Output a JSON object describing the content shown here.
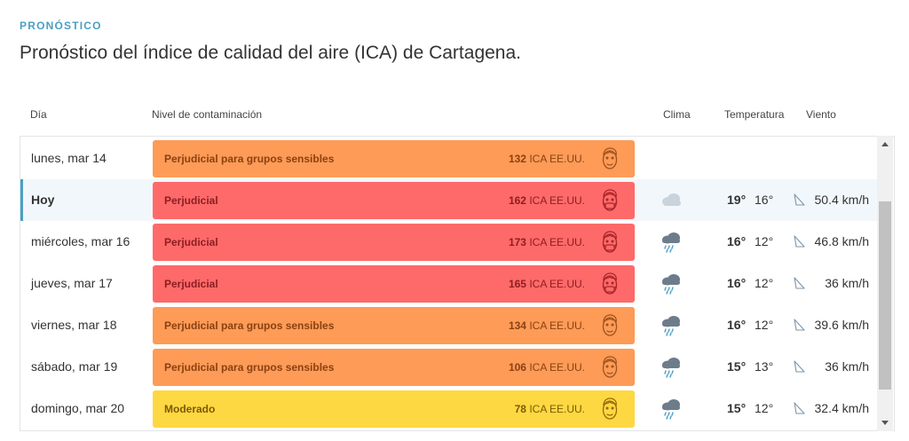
{
  "section": "PRONÓSTICO",
  "title": "Pronóstico del índice de calidad del aire (ICA) de Cartagena.",
  "columns": {
    "day": "Día",
    "level": "Nivel de contaminación",
    "weather": "Clima",
    "temperature": "Temperatura",
    "wind": "Viento"
  },
  "rows": [
    {
      "day": "lunes, mar 14",
      "level": "Perjudicial para grupos sensibles",
      "aqi": "132",
      "unit": "ICA EE.UU.",
      "color": "#fd9b57",
      "weather_icon": "",
      "tmax": "",
      "tmin": "",
      "wind": ""
    },
    {
      "day": "Hoy",
      "level": "Perjudicial",
      "aqi": "162",
      "unit": "ICA EE.UU.",
      "color": "#fe6a69",
      "weather_icon": "cloud-icon",
      "tmax": "19°",
      "tmin": "16°",
      "wind": "50.4 km/h"
    },
    {
      "day": "miércoles, mar 16",
      "level": "Perjudicial",
      "aqi": "173",
      "unit": "ICA EE.UU.",
      "color": "#fe6a69",
      "weather_icon": "rain-cloud-icon",
      "tmax": "16°",
      "tmin": "12°",
      "wind": "46.8 km/h"
    },
    {
      "day": "jueves, mar 17",
      "level": "Perjudicial",
      "aqi": "165",
      "unit": "ICA EE.UU.",
      "color": "#fe6a69",
      "weather_icon": "rain-cloud-icon",
      "tmax": "16°",
      "tmin": "12°",
      "wind": "36 km/h"
    },
    {
      "day": "viernes, mar 18",
      "level": "Perjudicial para grupos sensibles",
      "aqi": "134",
      "unit": "ICA EE.UU.",
      "color": "#fd9b57",
      "weather_icon": "rain-cloud-icon",
      "tmax": "16°",
      "tmin": "12°",
      "wind": "39.6 km/h"
    },
    {
      "day": "sábado, mar 19",
      "level": "Perjudicial para grupos sensibles",
      "aqi": "106",
      "unit": "ICA EE.UU.",
      "color": "#fd9b57",
      "weather_icon": "rain-cloud-icon",
      "tmax": "15°",
      "tmin": "13°",
      "wind": "36 km/h"
    },
    {
      "day": "domingo, mar 20",
      "level": "Moderado",
      "aqi": "78",
      "unit": "ICA EE.UU.",
      "color": "#fed842",
      "weather_icon": "rain-cloud-icon",
      "tmax": "15°",
      "tmin": "12°",
      "wind": "32.4 km/h"
    }
  ]
}
